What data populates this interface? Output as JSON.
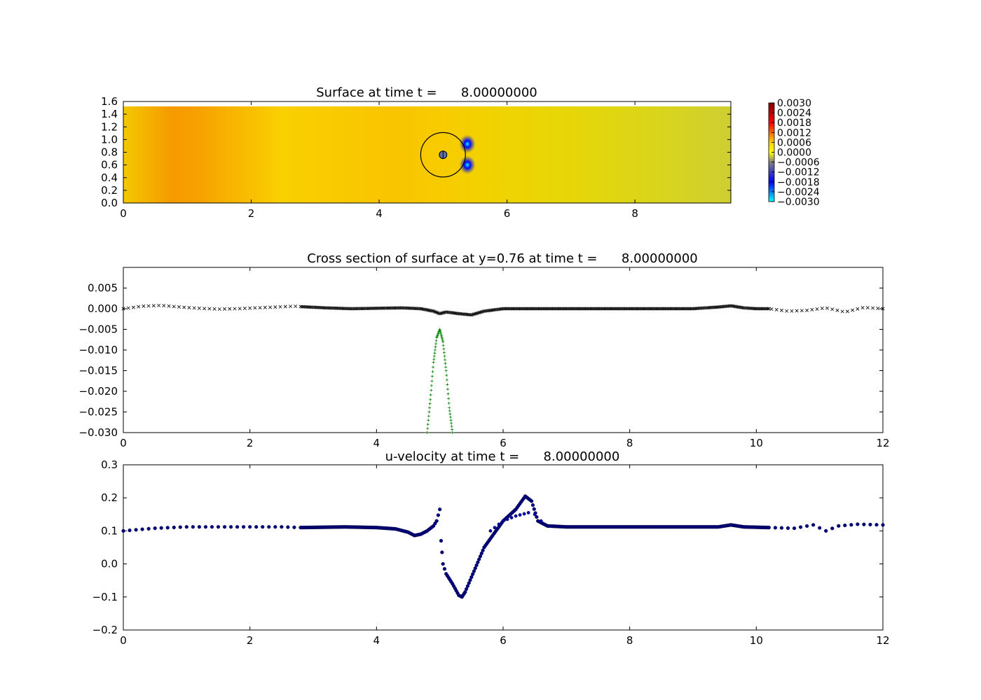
{
  "chart_data": [
    {
      "type": "heatmap",
      "title": "Surface at time t =      8.00000000",
      "xlim": [
        0,
        9.5
      ],
      "ylim": [
        0,
        1.6
      ],
      "xticks": [
        0,
        2,
        4,
        6,
        8
      ],
      "xtick_labels": [
        "0",
        "2",
        "4",
        "6",
        "8"
      ],
      "yticks": [
        0.0,
        0.2,
        0.4,
        0.6,
        0.8,
        1.0,
        1.2,
        1.4,
        1.6
      ],
      "ytick_labels": [
        "0.0",
        "0.2",
        "0.4",
        "0.6",
        "0.8",
        "1.0",
        "1.2",
        "1.4",
        "1.6"
      ],
      "domain": {
        "x": [
          0,
          9.5
        ],
        "y": [
          0,
          1.52
        ]
      },
      "colorbar": {
        "range": [
          -0.003,
          0.003
        ],
        "ticks": [
          0.003,
          0.0024,
          0.0018,
          0.0012,
          0.0006,
          0.0,
          -0.0006,
          -0.0012,
          -0.0018,
          -0.0024,
          -0.003
        ],
        "tick_labels": [
          "0.0030",
          "0.0024",
          "0.0018",
          "0.0012",
          "0.0006",
          "0.0000",
          "−0.0006",
          "−0.0012",
          "−0.0018",
          "−0.0024",
          "−0.0030"
        ],
        "colormap": [
          "#00ffff",
          "#0000ff",
          "#808080",
          "#ffff00",
          "#ff0000",
          "#800000"
        ]
      },
      "base_color": "#e8e000",
      "features": {
        "band_left": {
          "x": [
            0.1,
            0.65
          ],
          "value": 0.0012
        },
        "circle": {
          "cx": 5.0,
          "cy": 0.76,
          "r": 0.35
        },
        "inner_marker": {
          "cx": 5.0,
          "cy": 0.76,
          "r": 0.06
        },
        "spots": [
          {
            "x": 5.38,
            "y": 0.93
          },
          {
            "x": 5.38,
            "y": 0.6
          }
        ]
      }
    },
    {
      "type": "scatter",
      "title": "Cross section of surface at y=0.76 at time t =      8.00000000",
      "xlim": [
        0,
        12
      ],
      "ylim": [
        -0.03,
        0.01
      ],
      "xticks": [
        0,
        2,
        4,
        6,
        8,
        10,
        12
      ],
      "xtick_labels": [
        "0",
        "2",
        "4",
        "6",
        "8",
        "10",
        "12"
      ],
      "yticks": [
        0.005,
        0.0,
        -0.005,
        -0.01,
        -0.015,
        -0.02,
        -0.025,
        -0.03
      ],
      "ytick_labels": [
        "0.005",
        "0.000",
        "−0.005",
        "−0.010",
        "−0.015",
        "−0.020",
        "−0.025",
        "−0.030"
      ],
      "series": [
        {
          "marker": "x",
          "color": "#000000",
          "x": [
            0.0,
            0.3,
            0.6,
            0.9,
            1.2,
            1.5,
            1.8,
            2.1,
            2.4,
            2.7,
            2.8,
            3.2,
            3.6,
            4.0,
            4.4,
            4.7,
            4.9,
            5.0,
            5.1,
            5.3,
            5.5,
            5.7,
            6.0,
            7.0,
            8.0,
            9.0,
            9.4,
            9.6,
            9.8,
            10.0,
            10.2,
            10.5,
            10.8,
            11.1,
            11.4,
            11.7,
            12.0
          ],
          "y": [
            0.0,
            0.0006,
            0.0008,
            0.0004,
            0.0001,
            -0.0001,
            0.0,
            0.0002,
            0.0004,
            0.0006,
            0.0005,
            0.0002,
            0.0,
            0.0001,
            0.0002,
            0.0,
            -0.0006,
            -0.0012,
            -0.0008,
            -0.0012,
            -0.0015,
            -0.0006,
            0.0,
            0.0,
            0.0,
            0.0,
            0.0004,
            0.0007,
            0.0002,
            0.0,
            0.0,
            -0.0006,
            -0.0004,
            0.0002,
            -0.0008,
            0.0003,
            0.0
          ]
        },
        {
          "marker": "+",
          "color": "#008000",
          "x": [
            4.8,
            4.85,
            4.9,
            4.95,
            5.0,
            5.05,
            5.1,
            5.15,
            5.2
          ],
          "y": [
            -0.03,
            -0.022,
            -0.013,
            -0.007,
            -0.005,
            -0.008,
            -0.015,
            -0.024,
            -0.03
          ]
        }
      ]
    },
    {
      "type": "scatter",
      "title": "u-velocity at time t =      8.00000000",
      "xlim": [
        0,
        12
      ],
      "ylim": [
        -0.2,
        0.3
      ],
      "xticks": [
        0,
        2,
        4,
        6,
        8,
        10,
        12
      ],
      "xtick_labels": [
        "0",
        "2",
        "4",
        "6",
        "8",
        "10",
        "12"
      ],
      "yticks": [
        0.3,
        0.2,
        0.1,
        0.0,
        -0.1,
        -0.2
      ],
      "ytick_labels": [
        "0.3",
        "0.2",
        "0.1",
        "0.0",
        "−0.1",
        "−0.2"
      ],
      "series": [
        {
          "marker": "o",
          "color": "#00007f",
          "x": [
            0.0,
            0.5,
            1.0,
            1.5,
            2.0,
            2.5,
            2.8,
            3.5,
            4.0,
            4.3,
            4.5,
            4.6,
            4.7,
            4.8,
            4.9,
            4.95,
            5.0,
            5.02,
            5.05,
            5.1,
            5.2,
            5.3,
            5.35,
            5.4,
            5.5,
            5.7,
            6.0,
            6.2,
            6.35,
            6.45,
            6.55,
            6.7,
            7.0,
            8.0,
            9.0,
            9.4,
            9.6,
            9.8,
            10.2,
            10.6,
            10.9,
            11.1,
            11.3,
            11.6,
            12.0
          ],
          "y": [
            0.1,
            0.108,
            0.112,
            0.112,
            0.112,
            0.112,
            0.11,
            0.112,
            0.11,
            0.106,
            0.096,
            0.086,
            0.09,
            0.1,
            0.115,
            0.13,
            0.165,
            0.07,
            0.0,
            -0.03,
            -0.06,
            -0.095,
            -0.1,
            -0.085,
            -0.04,
            0.05,
            0.13,
            0.165,
            0.205,
            0.19,
            0.13,
            0.115,
            0.112,
            0.112,
            0.112,
            0.112,
            0.118,
            0.112,
            0.11,
            0.108,
            0.118,
            0.1,
            0.115,
            0.12,
            0.118
          ]
        },
        {
          "marker": "o",
          "color": "#0000b0",
          "x": [
            5.8,
            6.0,
            6.2,
            6.4,
            6.5,
            6.6
          ],
          "y": [
            0.1,
            0.13,
            0.145,
            0.155,
            0.15,
            0.13
          ]
        }
      ]
    }
  ]
}
